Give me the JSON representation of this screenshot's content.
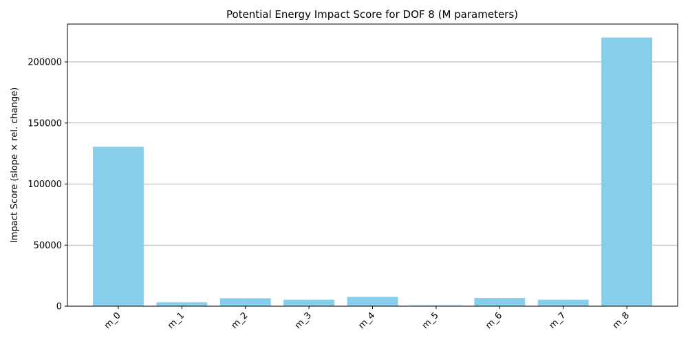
{
  "chart_data": {
    "type": "bar",
    "title": "Potential Energy Impact Score for DOF 8 (M parameters)",
    "xlabel": "",
    "ylabel": "Impact Score (slope × rel. change)",
    "categories": [
      "m_0",
      "m_1",
      "m_2",
      "m_3",
      "m_4",
      "m_5",
      "m_6",
      "m_7",
      "m_8"
    ],
    "values": [
      130500,
      3200,
      6500,
      5300,
      7600,
      500,
      6700,
      5300,
      220000
    ],
    "ylim": [
      0,
      231000
    ],
    "yticks": [
      0,
      50000,
      100000,
      150000,
      200000
    ],
    "grid": "y",
    "bar_color": "#87CEEB",
    "legend": "none"
  }
}
